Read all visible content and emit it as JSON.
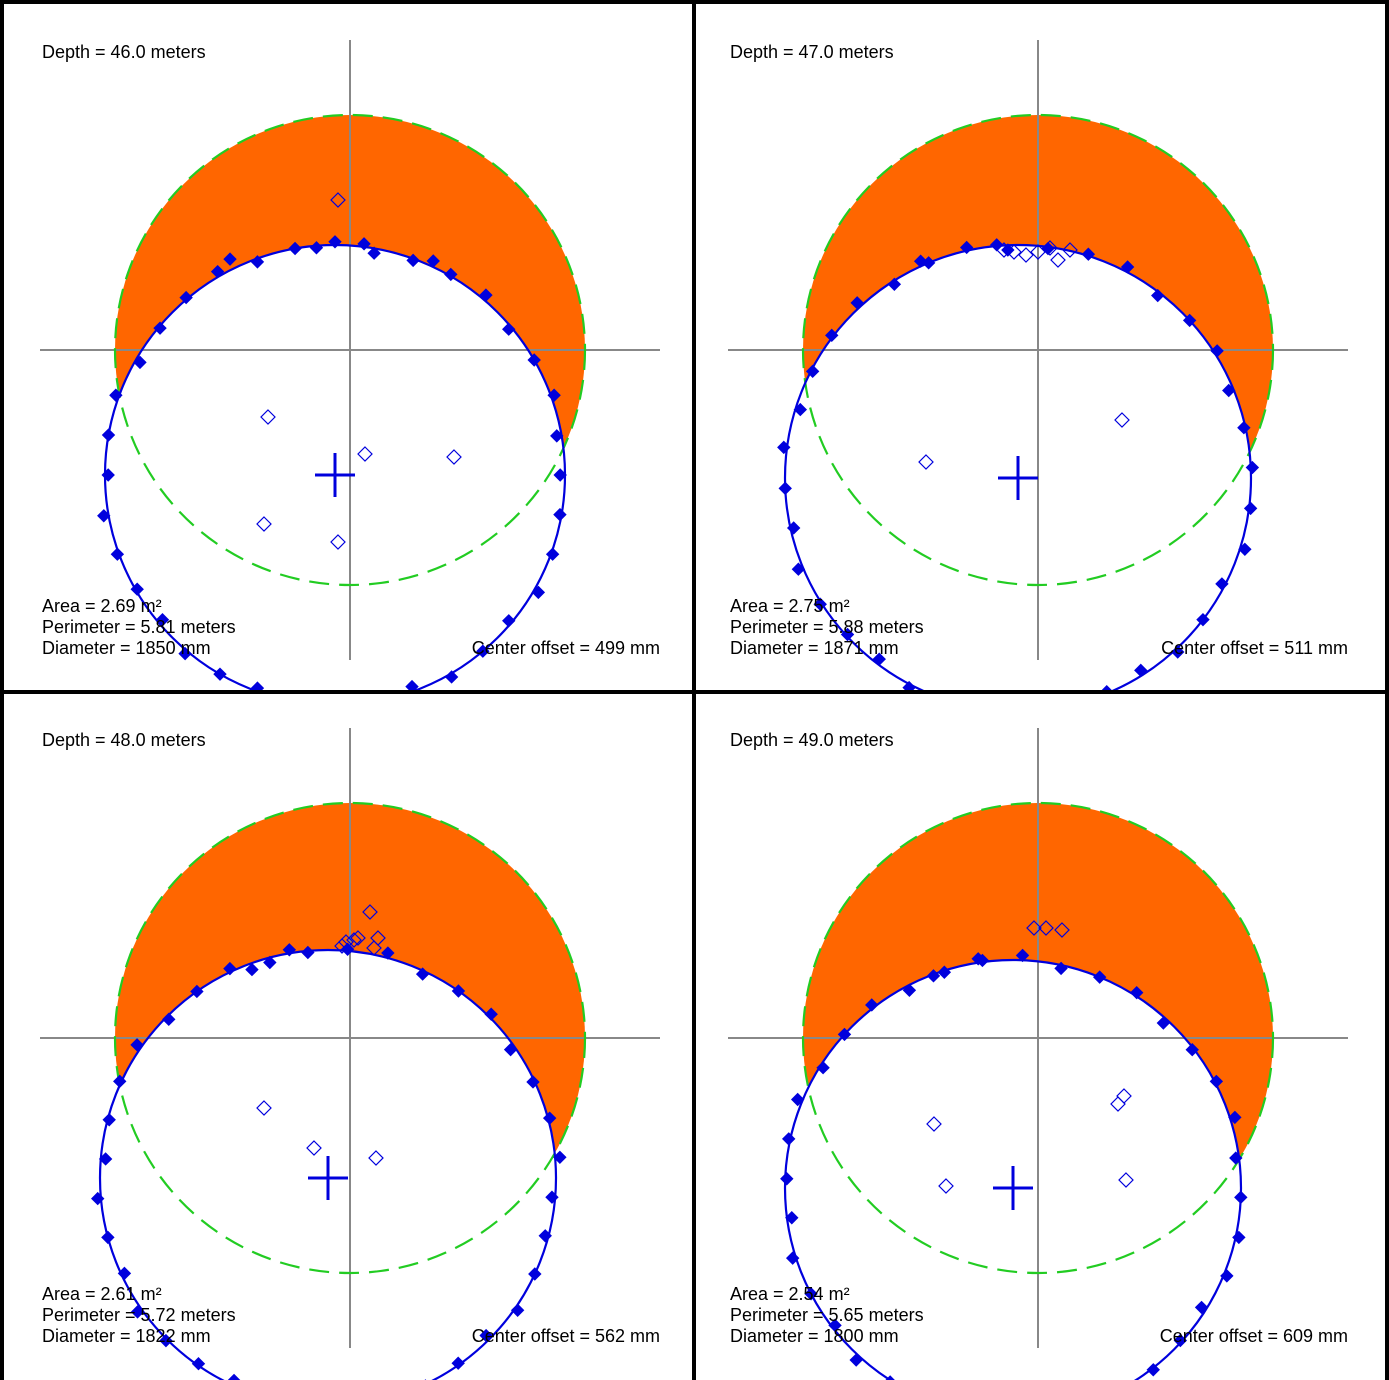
{
  "colors": {
    "measured_circle": "#0000dd",
    "reference_circle": "#22cc22",
    "deviation_fill": "#ff6600",
    "axes": "#888888",
    "frame": "#000000"
  },
  "chart_data": [
    {
      "type": "scatter",
      "depth_label": "Depth = 46.0 meters",
      "area_label": "Area = 2.69 m²",
      "perimeter_label": "Perimeter = 5.81 meters",
      "diameter_label": "Diameter = 1850 mm",
      "offset_label": "Center offset = 499 mm",
      "measured_center": [
        -15,
        -125
      ],
      "measured_radius": 230,
      "reference_radius": 235
    },
    {
      "type": "scatter",
      "depth_label": "Depth = 47.0 meters",
      "area_label": "Area = 2.75 m²",
      "perimeter_label": "Perimeter = 5.88 meters",
      "diameter_label": "Diameter = 1871 mm",
      "offset_label": "Center offset = 511 mm",
      "measured_center": [
        -20,
        -128
      ],
      "measured_radius": 233,
      "reference_radius": 235
    },
    {
      "type": "scatter",
      "depth_label": "Depth = 48.0 meters",
      "area_label": "Area = 2.61 m²",
      "perimeter_label": "Perimeter = 5.72 meters",
      "diameter_label": "Diameter = 1822 mm",
      "offset_label": "Center offset = 562 mm",
      "measured_center": [
        -22,
        -140
      ],
      "measured_radius": 228,
      "reference_radius": 235
    },
    {
      "type": "scatter",
      "depth_label": "Depth = 49.0 meters",
      "area_label": "Area = 2.54 m²",
      "perimeter_label": "Perimeter = 5.65 meters",
      "diameter_label": "Diameter = 1800 mm",
      "offset_label": "Center offset = 609 mm",
      "measured_center": [
        -25,
        -150
      ],
      "measured_radius": 228,
      "reference_radius": 235
    }
  ]
}
